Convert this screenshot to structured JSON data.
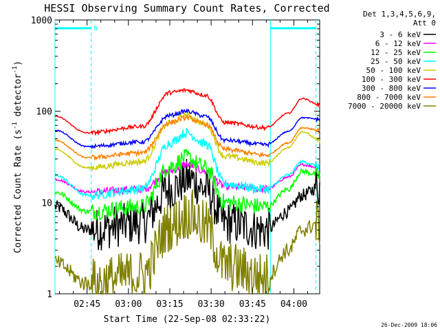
{
  "chart_data": {
    "type": "line",
    "title": "HESSI Observing Summary Count Rates, Corrected",
    "xlabel": "Start Time (22-Sep-08 02:33:22)",
    "ylabel": "Corrected Count Rate (s",
    "ylabel_sup1": "-1",
    "ylabel_mid": " detector",
    "ylabel_sup2": "-1",
    "ylabel_end": ")",
    "y_scale": "log",
    "ylim": [
      1,
      1000
    ],
    "xlim": [
      "02:33:22",
      "04:09:22"
    ],
    "x_ticks": [
      "02:45",
      "03:00",
      "03:15",
      "03:30",
      "03:45",
      "04:00"
    ],
    "y_ticks": [
      "1",
      "10",
      "100",
      "1000"
    ],
    "legend": {
      "placement": "right",
      "header_line1": "Det 1,3,4,5,6,9,",
      "header_line2": "Att 0"
    },
    "annotations": {
      "night_label": "N"
    },
    "footer_date": "26-Dec-2009 18:06",
    "style": {
      "marker_color": "#00ffff",
      "night_bar_color": "#00ffff"
    },
    "night_intervals": [
      [
        "02:33:22",
        "02:46:30"
      ],
      [
        "03:51:30",
        "04:08:00"
      ]
    ],
    "series": [
      {
        "name": "3 - 6 keV",
        "color": "#000000",
        "noise": 0.55,
        "points": [
          [
            "02:33:22",
            9
          ],
          [
            "02:45:00",
            5
          ],
          [
            "03:05:00",
            6
          ],
          [
            "03:15:00",
            14
          ],
          [
            "03:22:00",
            18
          ],
          [
            "03:28:00",
            14
          ],
          [
            "03:35:00",
            6
          ],
          [
            "03:50:00",
            5
          ],
          [
            "03:58:00",
            8
          ],
          [
            "04:03:00",
            12
          ],
          [
            "04:09:22",
            15
          ]
        ]
      },
      {
        "name": "6 - 12 keV",
        "color": "#ff00ff",
        "noise": 0.1,
        "points": [
          [
            "02:33:22",
            18
          ],
          [
            "02:45:00",
            13
          ],
          [
            "03:05:00",
            14
          ],
          [
            "03:15:00",
            22
          ],
          [
            "03:21:00",
            26
          ],
          [
            "03:28:00",
            22
          ],
          [
            "03:35:00",
            15
          ],
          [
            "03:50:00",
            14
          ],
          [
            "03:58:00",
            19
          ],
          [
            "04:03:00",
            26
          ],
          [
            "04:09:22",
            24
          ]
        ]
      },
      {
        "name": "12 - 25 keV",
        "color": "#00ff00",
        "noise": 0.22,
        "points": [
          [
            "02:33:22",
            13
          ],
          [
            "02:45:00",
            8
          ],
          [
            "03:05:00",
            9
          ],
          [
            "03:15:00",
            25
          ],
          [
            "03:21:00",
            31
          ],
          [
            "03:28:00",
            24
          ],
          [
            "03:35:00",
            10
          ],
          [
            "03:50:00",
            9
          ],
          [
            "03:58:00",
            14
          ],
          [
            "04:03:00",
            22
          ],
          [
            "04:09:22",
            20
          ]
        ]
      },
      {
        "name": "25 - 50 keV",
        "color": "#00ffff",
        "noise": 0.12,
        "points": [
          [
            "02:33:22",
            20
          ],
          [
            "02:45:00",
            12
          ],
          [
            "03:05:00",
            14
          ],
          [
            "03:15:00",
            45
          ],
          [
            "03:21:00",
            58
          ],
          [
            "03:28:00",
            44
          ],
          [
            "03:35:00",
            16
          ],
          [
            "03:50:00",
            14
          ],
          [
            "03:58:00",
            20
          ],
          [
            "04:03:00",
            28
          ],
          [
            "04:09:22",
            25
          ]
        ]
      },
      {
        "name": "50 - 100 keV",
        "color": "#cccc00",
        "noise": 0.08,
        "points": [
          [
            "02:33:22",
            38
          ],
          [
            "02:45:00",
            24
          ],
          [
            "03:05:00",
            28
          ],
          [
            "03:15:00",
            75
          ],
          [
            "03:21:00",
            90
          ],
          [
            "03:28:00",
            72
          ],
          [
            "03:35:00",
            32
          ],
          [
            "03:50:00",
            27
          ],
          [
            "03:58:00",
            40
          ],
          [
            "04:03:00",
            60
          ],
          [
            "04:09:22",
            48
          ]
        ]
      },
      {
        "name": "100 - 300 keV",
        "color": "#ff0000",
        "noise": 0.05,
        "points": [
          [
            "02:33:22",
            88
          ],
          [
            "02:45:00",
            58
          ],
          [
            "03:05:00",
            68
          ],
          [
            "03:15:00",
            160
          ],
          [
            "03:21:00",
            170
          ],
          [
            "03:28:00",
            150
          ],
          [
            "03:35:00",
            75
          ],
          [
            "03:50:00",
            66
          ],
          [
            "03:58:00",
            95
          ],
          [
            "04:03:00",
            138
          ],
          [
            "04:09:22",
            118
          ]
        ]
      },
      {
        "name": "300 - 800 keV",
        "color": "#0000ff",
        "noise": 0.05,
        "points": [
          [
            "02:33:22",
            62
          ],
          [
            "02:45:00",
            41
          ],
          [
            "03:05:00",
            46
          ],
          [
            "03:15:00",
            90
          ],
          [
            "03:21:00",
            100
          ],
          [
            "03:28:00",
            88
          ],
          [
            "03:35:00",
            48
          ],
          [
            "03:50:00",
            43
          ],
          [
            "03:58:00",
            60
          ],
          [
            "04:03:00",
            85
          ],
          [
            "04:09:22",
            82
          ]
        ]
      },
      {
        "name": "800 - 7000 keV",
        "color": "#ff8000",
        "noise": 0.06,
        "points": [
          [
            "02:33:22",
            48
          ],
          [
            "02:45:00",
            31
          ],
          [
            "03:05:00",
            35
          ],
          [
            "03:15:00",
            75
          ],
          [
            "03:21:00",
            85
          ],
          [
            "03:28:00",
            72
          ],
          [
            "03:35:00",
            38
          ],
          [
            "03:50:00",
            33
          ],
          [
            "03:58:00",
            45
          ],
          [
            "04:03:00",
            66
          ],
          [
            "04:09:22",
            62
          ]
        ]
      },
      {
        "name": "7000 - 20000 keV",
        "color": "#808000",
        "noise": 0.65,
        "points": [
          [
            "02:33:22",
            2.2
          ],
          [
            "02:45:00",
            1.3
          ],
          [
            "03:05:00",
            1.6
          ],
          [
            "03:15:00",
            5.5
          ],
          [
            "03:22:00",
            7.5
          ],
          [
            "03:28:00",
            5.5
          ],
          [
            "03:35:00",
            2
          ],
          [
            "03:50:00",
            1.5
          ],
          [
            "03:58:00",
            3
          ],
          [
            "04:03:00",
            5
          ],
          [
            "04:09:22",
            6
          ]
        ]
      }
    ]
  }
}
